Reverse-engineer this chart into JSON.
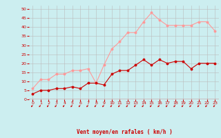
{
  "x": [
    0,
    1,
    2,
    3,
    4,
    5,
    6,
    7,
    8,
    9,
    10,
    11,
    12,
    13,
    14,
    15,
    16,
    17,
    18,
    19,
    20,
    21,
    22,
    23
  ],
  "wind_avg": [
    3,
    5,
    5,
    6,
    6,
    7,
    6,
    9,
    9,
    8,
    14,
    16,
    16,
    19,
    22,
    19,
    22,
    20,
    21,
    21,
    17,
    20,
    20,
    20
  ],
  "wind_gust": [
    6,
    11,
    11,
    14,
    14,
    16,
    16,
    17,
    9,
    19,
    28,
    32,
    37,
    37,
    43,
    48,
    44,
    41,
    41,
    41,
    41,
    43,
    43,
    38
  ],
  "bg_color": "#cceef0",
  "grid_color": "#bbbbbb",
  "line_avg_color": "#cc0000",
  "line_gust_color": "#ff9999",
  "xlabel": "Vent moyen/en rafales ( km/h )",
  "yticks": [
    0,
    5,
    10,
    15,
    20,
    25,
    30,
    35,
    40,
    45,
    50
  ],
  "xtick_labels": [
    "0",
    "1",
    "2",
    "3",
    "4",
    "5",
    "6",
    "7",
    "8",
    "9",
    "10",
    "11",
    "12",
    "13",
    "14",
    "15",
    "16",
    "17",
    "18",
    "19",
    "20",
    "21",
    "22",
    "23"
  ],
  "ylim": [
    0,
    52
  ],
  "xlim": [
    -0.5,
    23.5
  ]
}
